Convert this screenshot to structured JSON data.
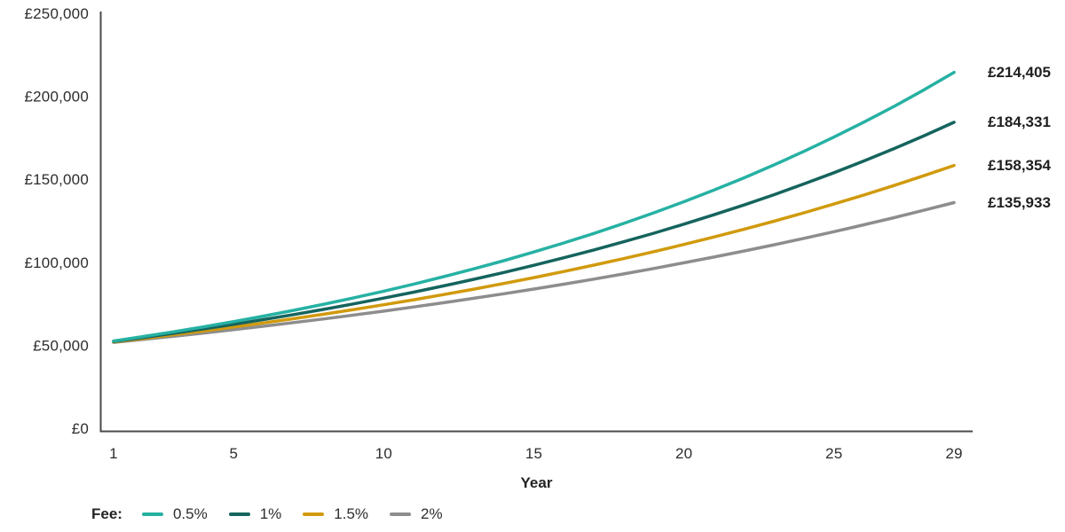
{
  "chart_data": {
    "type": "line",
    "title": "",
    "xlabel": "Year",
    "ylabel": "",
    "grid": false,
    "legend_title": "Fee:",
    "legend_position": "bottom-left",
    "axis_color": "#4a4a4a",
    "text_color": "#2d2d2d",
    "xlim": [
      1,
      29
    ],
    "ylim": [
      0,
      250000
    ],
    "x_ticks": [
      1,
      5,
      10,
      15,
      20,
      25,
      29
    ],
    "y_ticks": [
      {
        "value": 0,
        "label": "£0"
      },
      {
        "value": 50000,
        "label": "£50,000"
      },
      {
        "value": 100000,
        "label": "£100,000"
      },
      {
        "value": 150000,
        "label": "£150,000"
      },
      {
        "value": 200000,
        "label": "£200,000"
      },
      {
        "value": 250000,
        "label": "£250,000"
      }
    ],
    "x": [
      1,
      2,
      3,
      4,
      5,
      6,
      7,
      8,
      9,
      10,
      11,
      12,
      13,
      14,
      15,
      16,
      17,
      18,
      19,
      20,
      21,
      22,
      23,
      24,
      25,
      26,
      27,
      28,
      29
    ],
    "series": [
      {
        "name": "0.5%",
        "color": "#26b1a3",
        "end_label": "£214,405",
        "end_value": 214405,
        "values": [
          52574,
          55281,
          58127,
          61120,
          64266,
          67575,
          71054,
          74713,
          78559,
          82604,
          86857,
          91329,
          96031,
          100975,
          106174,
          111640,
          117387,
          123431,
          129786,
          136467,
          143493,
          150881,
          158649,
          166817,
          175405,
          184436,
          193931,
          203916,
          214405
        ]
      },
      {
        "name": "1%",
        "color": "#15645e",
        "end_label": "£184,331",
        "end_value": 184331,
        "values": [
          52301,
          54708,
          57225,
          59859,
          62613,
          65495,
          68509,
          71661,
          74959,
          78408,
          82017,
          85791,
          89739,
          93868,
          98188,
          102707,
          107433,
          112377,
          117548,
          122958,
          128616,
          134535,
          140727,
          147203,
          153977,
          161063,
          168475,
          176228,
          184331
        ]
      },
      {
        "name": "1.5%",
        "color": "#d19a0d",
        "end_label": "£158,354",
        "end_value": 158354,
        "values": [
          52028,
          54138,
          56333,
          58618,
          60995,
          63468,
          66042,
          68721,
          71507,
          74407,
          77425,
          80565,
          83832,
          87232,
          90769,
          94450,
          98281,
          102266,
          106414,
          110729,
          115220,
          119892,
          124754,
          129814,
          135078,
          140556,
          146256,
          152187,
          158354
        ]
      },
      {
        "name": "2%",
        "color": "#8d8d8d",
        "end_label": "£135,933",
        "end_value": 135933,
        "values": [
          51754,
          53570,
          55450,
          57396,
          59410,
          61495,
          63653,
          65887,
          68199,
          70592,
          73069,
          75633,
          78287,
          81035,
          83878,
          86822,
          89868,
          93022,
          96286,
          99665,
          103163,
          106783,
          110530,
          114409,
          118424,
          122580,
          126881,
          131334,
          135933
        ]
      }
    ]
  }
}
